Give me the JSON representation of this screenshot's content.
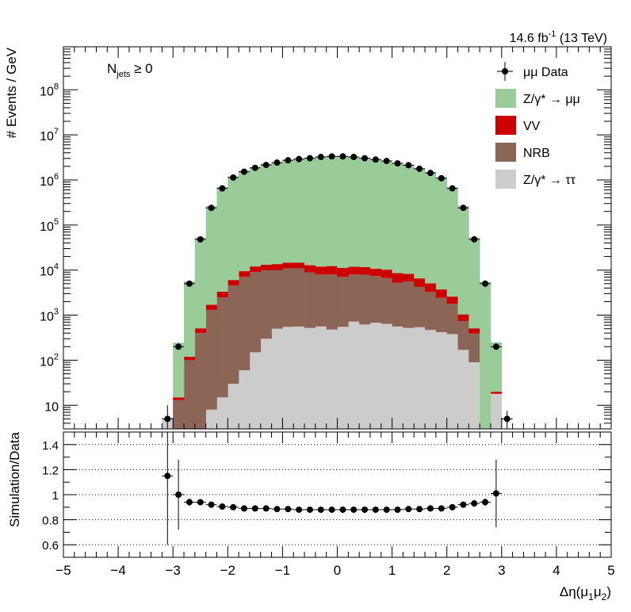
{
  "chart_data": [
    {
      "type": "bar",
      "stacked": true,
      "log_y": true,
      "ylim": [
        3,
        900000000
      ],
      "xlim": [
        -5,
        5
      ],
      "bin_width": 0.2,
      "bins_x_low": [
        -3.2,
        -3.0,
        -2.8,
        -2.6,
        -2.4,
        -2.2,
        -2.0,
        -1.8,
        -1.6,
        -1.4,
        -1.2,
        -1.0,
        -0.8,
        -0.6,
        -0.4,
        -0.2,
        0.0,
        0.2,
        0.4,
        0.6,
        0.8,
        1.0,
        1.2,
        1.4,
        1.6,
        1.8,
        2.0,
        2.2,
        2.4,
        2.6,
        2.8,
        3.0
      ],
      "ylabel": "# Events / GeV",
      "luminosity_label": {
        "main": "14.6 fb",
        "sup": "-1",
        "tail": " (13 TeV)"
      },
      "category_label": {
        "main": "N",
        "sub": "jets",
        "tail": " ≥ 0"
      },
      "y_ticks": [
        {
          "value": 10,
          "base": "10",
          "exp": ""
        },
        {
          "value": 100,
          "base": "10",
          "exp": "2"
        },
        {
          "value": 1000,
          "base": "10",
          "exp": "3"
        },
        {
          "value": 10000,
          "base": "10",
          "exp": "4"
        },
        {
          "value": 100000,
          "base": "10",
          "exp": "5"
        },
        {
          "value": 1000000,
          "base": "10",
          "exp": "6"
        },
        {
          "value": 10000000,
          "base": "10",
          "exp": "7"
        },
        {
          "value": 100000000,
          "base": "10",
          "exp": "8"
        }
      ],
      "legend": [
        {
          "key": "data",
          "name": "μμ Data",
          "kind": "marker"
        },
        {
          "key": "dy_mumu",
          "name": "Z/γ* → μμ",
          "kind": "box",
          "color": "#99cc99"
        },
        {
          "key": "vv",
          "name": "VV",
          "kind": "box",
          "color": "#cc0000"
        },
        {
          "key": "nrb",
          "name": "NRB",
          "kind": "box",
          "color": "#8b6555"
        },
        {
          "key": "dy_tautau",
          "name": "Z/γ* → ττ",
          "kind": "box",
          "color": "#cccccc"
        }
      ],
      "series": [
        {
          "key": "dy_tautau",
          "name": "Z/γ* → ττ",
          "color": "#cccccc",
          "values": [
            5,
            0,
            0,
            0,
            8,
            15,
            30,
            60,
            150,
            300,
            500,
            550,
            560,
            520,
            560,
            480,
            550,
            720,
            620,
            680,
            640,
            560,
            520,
            540,
            470,
            420,
            380,
            170,
            90,
            0,
            18,
            0
          ]
        },
        {
          "key": "nrb",
          "name": "NRB",
          "color": "#8b6555",
          "values": [
            0,
            13,
            100,
            400,
            1300,
            2450,
            4500,
            7000,
            8900,
            9600,
            9400,
            10400,
            10400,
            8400,
            7400,
            7500,
            6500,
            7300,
            7300,
            6700,
            6000,
            4700,
            5100,
            3700,
            2800,
            2000,
            1400,
            570,
            300,
            0,
            0,
            0
          ]
        },
        {
          "key": "vv",
          "name": "VV",
          "color": "#cc0000",
          "values": [
            0,
            2,
            20,
            110,
            400,
            850,
            1500,
            2400,
            3000,
            3200,
            3700,
            3700,
            3700,
            3900,
            4000,
            4300,
            4100,
            3900,
            3700,
            3400,
            3600,
            3300,
            2600,
            2300,
            1800,
            1300,
            800,
            300,
            120,
            0,
            2,
            0
          ]
        },
        {
          "key": "dy_mumu",
          "name": "Z/γ* → μμ",
          "color": "#99cc99",
          "values": [
            0,
            230,
            5500,
            52000,
            260000,
            690000,
            1190000,
            1580000,
            1920000,
            2220000,
            2480000,
            2800000,
            2980000,
            3080000,
            3280000,
            3280000,
            3280000,
            3180000,
            3080000,
            2880000,
            2680000,
            2380000,
            2170000,
            1820000,
            1480000,
            1140000,
            690000,
            260000,
            52000,
            5500,
            230,
            0
          ]
        },
        {
          "key": "data",
          "name": "μμ Data",
          "kind": "points",
          "x": [
            -3.1,
            -2.9,
            -2.7,
            -2.5,
            -2.3,
            -2.1,
            -1.9,
            -1.7,
            -1.5,
            -1.3,
            -1.1,
            -0.9,
            -0.7,
            -0.5,
            -0.3,
            -0.1,
            0.1,
            0.3,
            0.5,
            0.7,
            0.9,
            1.1,
            1.3,
            1.5,
            1.7,
            1.9,
            2.1,
            2.3,
            2.5,
            2.7,
            2.9,
            3.1
          ],
          "values": [
            5,
            200,
            5000,
            48000,
            240000,
            650000,
            1130000,
            1520000,
            1850000,
            2150000,
            2420000,
            2730000,
            2900000,
            3030000,
            3230000,
            3330000,
            3330000,
            3230000,
            3030000,
            2830000,
            2630000,
            2330000,
            2120000,
            1770000,
            1430000,
            1090000,
            650000,
            240000,
            48000,
            5000,
            200,
            5
          ],
          "err_low": [
            2.5,
            15,
            0,
            0,
            0,
            0,
            0,
            0,
            0,
            0,
            0,
            0,
            0,
            0,
            0,
            0,
            0,
            0,
            0,
            0,
            0,
            0,
            0,
            0,
            0,
            0,
            0,
            0,
            0,
            0,
            15,
            2.5
          ],
          "err_high": [
            5,
            15,
            0,
            0,
            0,
            0,
            0,
            0,
            0,
            0,
            0,
            0,
            0,
            0,
            0,
            0,
            0,
            0,
            0,
            0,
            0,
            0,
            0,
            0,
            0,
            0,
            0,
            0,
            0,
            0,
            15,
            2.5
          ]
        }
      ]
    },
    {
      "type": "scatter",
      "ylabel": "Simulation/Data",
      "xlabel_main": "Δη(μ",
      "xlabel_sub1": "1",
      "xlabel_mid": "μ",
      "xlabel_sub2": "2",
      "xlabel_tail": ")",
      "xlim": [
        -5,
        5
      ],
      "ylim": [
        0.5,
        1.5
      ],
      "x_ticks": [
        "−5",
        "−4",
        "−3",
        "−2",
        "−1",
        "0",
        "1",
        "2",
        "3",
        "4",
        "5"
      ],
      "y_ticks": [
        "0.6",
        "0.8",
        "1",
        "1.2",
        "1.4"
      ],
      "grid_y": [
        0.6,
        0.8,
        1.0,
        1.2,
        1.4
      ],
      "x": [
        -3.1,
        -2.9,
        -2.7,
        -2.5,
        -2.3,
        -2.1,
        -1.9,
        -1.7,
        -1.5,
        -1.3,
        -1.1,
        -0.9,
        -0.7,
        -0.5,
        -0.3,
        -0.1,
        0.1,
        0.3,
        0.5,
        0.7,
        0.9,
        1.1,
        1.3,
        1.5,
        1.7,
        1.9,
        2.1,
        2.3,
        2.5,
        2.7,
        2.9
      ],
      "values": [
        1.15,
        1.0,
        0.94,
        0.94,
        0.92,
        0.905,
        0.9,
        0.89,
        0.89,
        0.89,
        0.885,
        0.885,
        0.88,
        0.88,
        0.88,
        0.88,
        0.88,
        0.88,
        0.88,
        0.88,
        0.88,
        0.88,
        0.885,
        0.885,
        0.89,
        0.89,
        0.9,
        0.92,
        0.93,
        0.94,
        1.01
      ],
      "err": [
        0.55,
        0.28,
        0.03,
        0.01,
        0.005,
        0.005,
        0.005,
        0.005,
        0.005,
        0.005,
        0.005,
        0.005,
        0.005,
        0.005,
        0.005,
        0.005,
        0.005,
        0.005,
        0.005,
        0.005,
        0.005,
        0.005,
        0.005,
        0.005,
        0.005,
        0.005,
        0.005,
        0.005,
        0.01,
        0.03,
        0.27
      ]
    }
  ]
}
